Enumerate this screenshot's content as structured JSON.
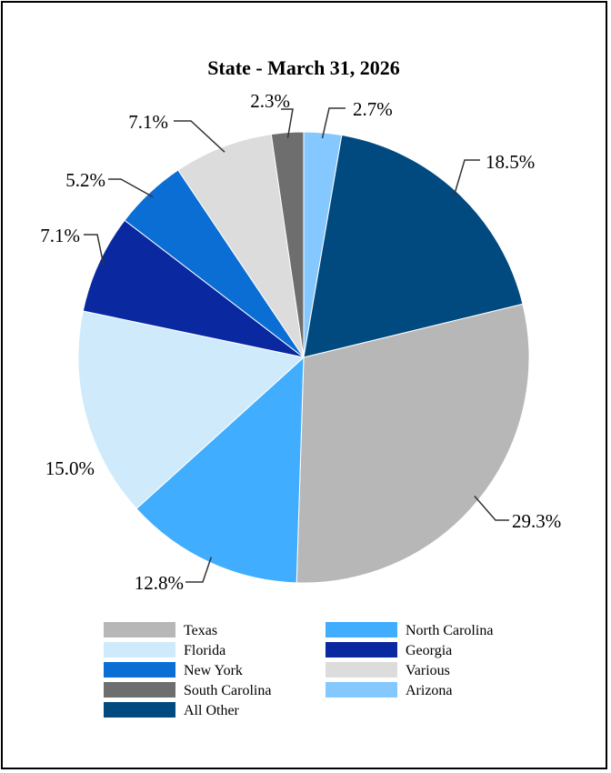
{
  "chart_data": {
    "type": "pie",
    "title": "State - March 31, 2026",
    "start_angle_deg": 0,
    "direction": "clockwise",
    "slices": [
      {
        "name": "Arizona",
        "value": 2.7,
        "label": "2.7%",
        "color": "#85C8FF"
      },
      {
        "name": "All Other",
        "value": 18.5,
        "label": "18.5%",
        "color": "#004A7F"
      },
      {
        "name": "Texas",
        "value": 29.3,
        "label": "29.3%",
        "color": "#B7B7B7"
      },
      {
        "name": "North Carolina",
        "value": 12.8,
        "label": "12.8%",
        "color": "#40ADFF"
      },
      {
        "name": "Florida",
        "value": 15.0,
        "label": "15.0%",
        "color": "#CFEBFB"
      },
      {
        "name": "Georgia",
        "value": 7.1,
        "label": "7.1%",
        "color": "#0A28A0"
      },
      {
        "name": "New York",
        "value": 5.2,
        "label": "5.2%",
        "color": "#0A6ED4"
      },
      {
        "name": "Various",
        "value": 7.1,
        "label": "7.1%",
        "color": "#DCDCDC"
      },
      {
        "name": "South Carolina",
        "value": 2.3,
        "label": "2.3%",
        "color": "#6E6E6E"
      }
    ],
    "legend": [
      {
        "name": "Texas",
        "color": "#B7B7B7"
      },
      {
        "name": "North Carolina",
        "color": "#40ADFF"
      },
      {
        "name": "Florida",
        "color": "#CFEBFB"
      },
      {
        "name": "Georgia",
        "color": "#0A28A0"
      },
      {
        "name": "New York",
        "color": "#0A6ED4"
      },
      {
        "name": "Various",
        "color": "#DCDCDC"
      },
      {
        "name": "South Carolina",
        "color": "#6E6E6E"
      },
      {
        "name": "Arizona",
        "color": "#85C8FF"
      },
      {
        "name": "All Other",
        "color": "#004A7F"
      }
    ],
    "legend_position": "bottom"
  }
}
